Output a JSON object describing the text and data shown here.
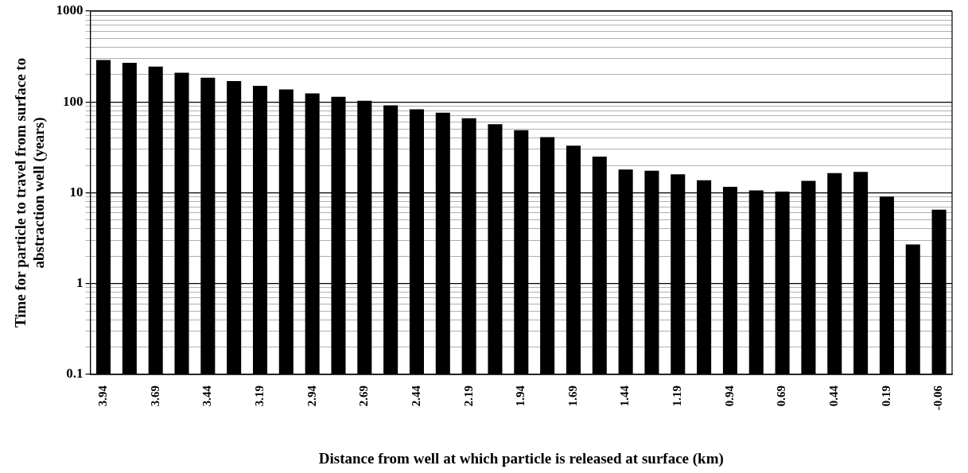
{
  "chart_data": {
    "type": "bar",
    "xlabel": "Distance from well at which particle is released at surface (km)",
    "ylabel": "Time for particle to travel from surface to abstraction well (years)",
    "categories": [
      "3.94",
      null,
      "3.69",
      null,
      "3.44",
      null,
      "3.19",
      null,
      "2.94",
      null,
      "2.69",
      null,
      "2.44",
      null,
      "2.19",
      null,
      "1.94",
      null,
      "1.69",
      null,
      "1.44",
      null,
      "1.19",
      null,
      "0.94",
      null,
      "0.69",
      null,
      "0.44",
      null,
      "0.19",
      null,
      "-0.06"
    ],
    "values": [
      290,
      270,
      245,
      210,
      185,
      170,
      150,
      137,
      124,
      114,
      103,
      92,
      83,
      76,
      66,
      57,
      49,
      41,
      33,
      25,
      18,
      17.5,
      16,
      13.7,
      11.6,
      10.6,
      10.3,
      13.5,
      16.5,
      17,
      9.1,
      2.7,
      6.5
    ],
    "color": "#000000",
    "log": true,
    "ylim": [
      0.1,
      1000
    ],
    "yticks": [
      0.1,
      1,
      10,
      100,
      1000
    ],
    "grid": "y",
    "legend": false
  }
}
